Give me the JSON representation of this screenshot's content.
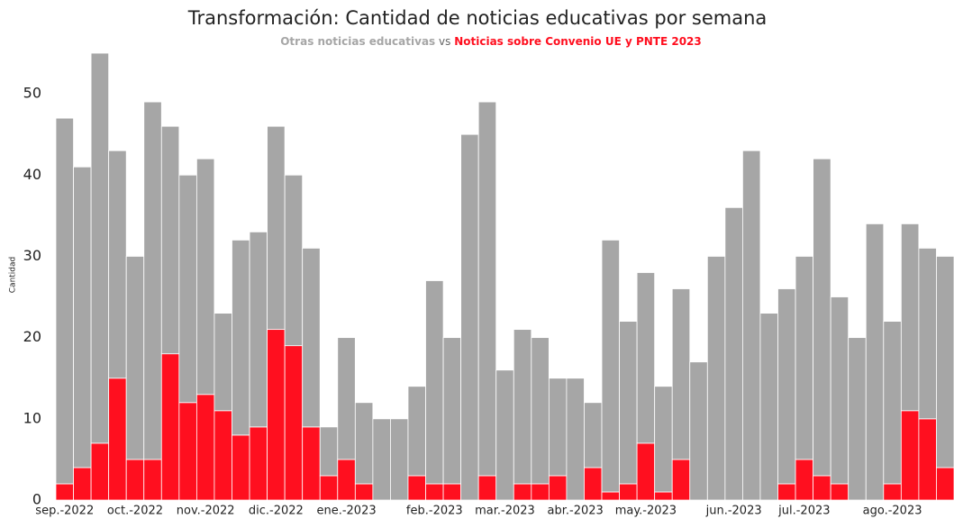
{
  "chart_data": {
    "type": "stacked_bar",
    "title": "Transformación:   Cantidad de noticias educativas por semana",
    "legend_separator": "vs",
    "y_label": "Cantidad",
    "categories": [
      "sep.-2022",
      null,
      null,
      null,
      "oct.-2022",
      null,
      null,
      null,
      "nov.-2022",
      null,
      null,
      null,
      "dic.-2022",
      null,
      null,
      null,
      "ene.-2023",
      null,
      null,
      null,
      null,
      "feb.-2023",
      null,
      null,
      null,
      "mar.-2023",
      null,
      null,
      null,
      "abr.-2023",
      null,
      null,
      null,
      "may.-2023",
      null,
      null,
      null,
      null,
      "jun.-2023",
      null,
      null,
      null,
      "jul.-2023",
      null,
      null,
      null,
      null,
      "ago.-2023",
      null,
      null,
      null
    ],
    "series": [
      {
        "name": "Otras noticias educativas",
        "color": "#a6a6a6",
        "values": [
          45,
          37,
          48,
          28,
          25,
          44,
          28,
          28,
          29,
          12,
          24,
          24,
          25,
          21,
          22,
          6,
          15,
          10,
          10,
          10,
          11,
          25,
          18,
          45,
          46,
          16,
          19,
          18,
          12,
          15,
          8,
          31,
          20,
          21,
          13,
          21,
          17,
          30,
          36,
          43,
          23,
          24,
          25,
          39,
          23,
          20,
          34,
          20,
          23,
          21,
          26
        ]
      },
      {
        "name": "Noticias sobre Convenio UE y PNTE 2023",
        "color": "#ff0f1f",
        "values": [
          2,
          4,
          7,
          15,
          5,
          5,
          18,
          12,
          13,
          11,
          8,
          9,
          21,
          19,
          9,
          3,
          5,
          2,
          0,
          0,
          3,
          2,
          2,
          0,
          3,
          0,
          2,
          2,
          3,
          0,
          4,
          1,
          2,
          7,
          1,
          5,
          0,
          0,
          0,
          0,
          0,
          2,
          5,
          3,
          2,
          0,
          0,
          2,
          11,
          10,
          4
        ]
      }
    ],
    "ylim": [
      0,
      55
    ],
    "yticks": [
      0,
      10,
      20,
      30,
      40,
      50
    ],
    "grid": false
  }
}
